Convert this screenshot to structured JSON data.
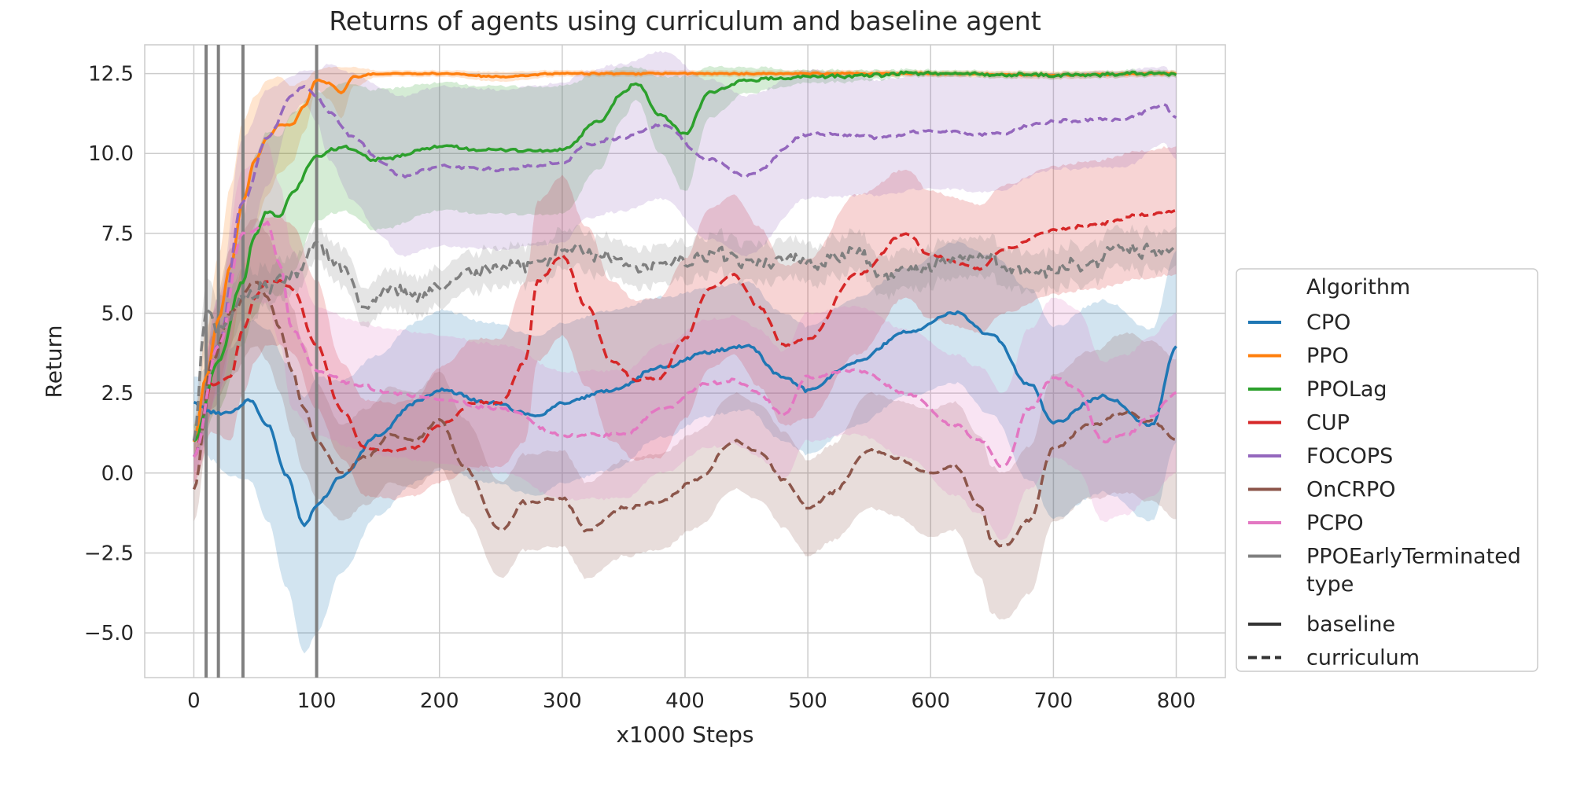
{
  "chart_data": {
    "type": "line",
    "title": "Returns of agents using curriculum and baseline agent",
    "xlabel": "x1000 Steps",
    "ylabel": "Return",
    "xlim": [
      -40,
      840
    ],
    "ylim": [
      -6.4,
      13.4
    ],
    "xticks": [
      0,
      100,
      200,
      300,
      400,
      500,
      600,
      700,
      800
    ],
    "xtick_labels": [
      "0",
      "100",
      "200",
      "300",
      "400",
      "500",
      "600",
      "700",
      "800"
    ],
    "yticks": [
      -5.0,
      -2.5,
      0.0,
      2.5,
      5.0,
      7.5,
      10.0,
      12.5
    ],
    "ytick_labels": [
      "−5.0",
      "−2.5",
      "0.0",
      "2.5",
      "5.0",
      "7.5",
      "10.0",
      "12.5"
    ],
    "grid": true,
    "vertical_lines": [
      10,
      20,
      40,
      100
    ],
    "legend": {
      "placement": "right-outside",
      "hue_title": "Algorithm",
      "style_title": "type",
      "style_entries": [
        {
          "label": "baseline",
          "dash": false
        },
        {
          "label": "curriculum",
          "dash": true
        }
      ]
    },
    "series": [
      {
        "name": "CPO",
        "color": "#1f77b4",
        "type": "baseline",
        "x": [
          0,
          15,
          30,
          45,
          60,
          75,
          90,
          100,
          120,
          150,
          180,
          200,
          240,
          280,
          300,
          340,
          380,
          420,
          450,
          480,
          500,
          540,
          580,
          620,
          650,
          680,
          700,
          740,
          780,
          800
        ],
        "y": [
          2.2,
          1.9,
          1.9,
          2.3,
          1.5,
          0.0,
          -1.6,
          -1.0,
          -0.1,
          1.2,
          2.2,
          2.6,
          2.2,
          1.8,
          2.2,
          2.6,
          3.3,
          3.8,
          4.0,
          3.0,
          2.6,
          3.5,
          4.4,
          5.0,
          4.3,
          2.8,
          1.6,
          2.4,
          1.5,
          3.9
        ],
        "band_width": [
          0.8,
          1.5,
          2.0,
          2.5,
          3.0,
          3.5,
          4.0,
          4.0,
          3.0,
          2.5,
          2.5,
          2.5,
          2.5,
          2.5,
          2.5,
          2.5,
          2.2,
          2.0,
          2.0,
          2.0,
          2.0,
          2.0,
          2.0,
          2.2,
          2.5,
          3.0,
          3.0,
          3.0,
          3.0,
          3.0
        ]
      },
      {
        "name": "PPO",
        "color": "#ff7f0e",
        "type": "baseline",
        "x": [
          0,
          10,
          20,
          30,
          40,
          50,
          60,
          70,
          80,
          90,
          100,
          110,
          120,
          130,
          150,
          200,
          250,
          300,
          400,
          500,
          600,
          700,
          800
        ],
        "y": [
          1.0,
          3.0,
          4.8,
          6.5,
          8.5,
          9.8,
          10.5,
          10.9,
          10.9,
          11.5,
          12.3,
          12.2,
          11.9,
          12.4,
          12.5,
          12.5,
          12.4,
          12.5,
          12.5,
          12.5,
          12.5,
          12.45,
          12.5
        ],
        "band_width": [
          0.5,
          1.5,
          2.0,
          2.5,
          2.5,
          2.0,
          1.8,
          1.5,
          1.2,
          0.8,
          0.3,
          0.5,
          0.8,
          0.3,
          0.1,
          0.1,
          0.15,
          0.1,
          0.1,
          0.1,
          0.1,
          0.12,
          0.1
        ]
      },
      {
        "name": "PPOLag",
        "color": "#2ca02c",
        "type": "baseline",
        "x": [
          0,
          20,
          40,
          50,
          60,
          70,
          80,
          100,
          120,
          150,
          200,
          250,
          300,
          330,
          350,
          360,
          380,
          400,
          420,
          450,
          500,
          600,
          700,
          800
        ],
        "y": [
          1.0,
          3.5,
          6.0,
          7.5,
          8.2,
          8.0,
          8.8,
          9.9,
          10.2,
          9.8,
          10.2,
          10.1,
          10.1,
          11.0,
          11.9,
          12.2,
          11.2,
          10.6,
          11.9,
          12.3,
          12.4,
          12.5,
          12.45,
          12.5
        ],
        "band_width": [
          0.5,
          1.5,
          2.0,
          2.5,
          2.5,
          2.5,
          2.5,
          2.0,
          2.0,
          2.2,
          2.0,
          2.0,
          2.0,
          1.5,
          0.8,
          0.5,
          1.2,
          1.8,
          0.8,
          0.4,
          0.2,
          0.1,
          0.1,
          0.1
        ]
      },
      {
        "name": "CUP",
        "color": "#d62728",
        "type": "curriculum",
        "x": [
          0,
          15,
          30,
          40,
          50,
          60,
          70,
          80,
          100,
          120,
          140,
          160,
          180,
          200,
          230,
          250,
          270,
          280,
          300,
          320,
          340,
          360,
          380,
          400,
          420,
          440,
          460,
          480,
          500,
          540,
          580,
          600,
          640,
          660,
          700,
          740,
          770,
          800
        ],
        "y": [
          0.5,
          2.8,
          3.0,
          4.5,
          5.5,
          6.0,
          6.0,
          5.8,
          4.0,
          2.0,
          0.8,
          0.7,
          0.8,
          1.5,
          2.2,
          2.2,
          3.5,
          6.0,
          6.8,
          5.2,
          3.5,
          2.9,
          3.0,
          4.2,
          5.8,
          6.2,
          5.2,
          4.0,
          4.2,
          6.2,
          7.5,
          6.8,
          6.4,
          7.0,
          7.6,
          7.8,
          8.1,
          8.2
        ],
        "band_width": [
          0.8,
          1.5,
          2.0,
          2.0,
          2.0,
          2.0,
          2.0,
          2.0,
          2.0,
          1.5,
          1.5,
          1.5,
          1.5,
          1.8,
          2.0,
          2.0,
          2.5,
          2.5,
          2.5,
          2.5,
          2.5,
          2.5,
          2.5,
          2.5,
          2.5,
          2.5,
          2.5,
          2.5,
          2.5,
          2.5,
          2.0,
          2.0,
          2.0,
          2.0,
          2.0,
          2.0,
          2.0,
          2.0
        ]
      },
      {
        "name": "FOCOPS",
        "color": "#9467bd",
        "type": "curriculum",
        "x": [
          0,
          20,
          40,
          60,
          80,
          90,
          100,
          110,
          130,
          150,
          170,
          200,
          250,
          300,
          320,
          350,
          380,
          420,
          450,
          500,
          560,
          600,
          650,
          700,
          760,
          790,
          800
        ],
        "y": [
          0.5,
          4.0,
          8.5,
          10.5,
          11.8,
          12.1,
          11.8,
          11.3,
          10.5,
          9.8,
          9.3,
          9.6,
          9.5,
          9.7,
          10.3,
          10.5,
          10.9,
          9.8,
          9.3,
          10.6,
          10.5,
          10.7,
          10.6,
          11.0,
          11.1,
          11.5,
          11.1
        ],
        "band_width": [
          0.5,
          1.5,
          2.0,
          1.5,
          0.6,
          0.5,
          0.8,
          1.5,
          2.0,
          2.3,
          2.5,
          2.5,
          2.5,
          2.5,
          2.3,
          2.3,
          2.3,
          2.5,
          2.5,
          2.0,
          1.8,
          1.8,
          1.8,
          1.5,
          1.5,
          1.2,
          1.3
        ]
      },
      {
        "name": "OnCRPO",
        "color": "#8c564b",
        "type": "curriculum",
        "x": [
          0,
          15,
          30,
          50,
          60,
          70,
          80,
          90,
          100,
          120,
          140,
          160,
          180,
          200,
          220,
          250,
          270,
          300,
          320,
          350,
          380,
          410,
          440,
          460,
          480,
          500,
          520,
          550,
          570,
          600,
          620,
          640,
          650,
          660,
          680,
          700,
          730,
          760,
          780,
          800
        ],
        "y": [
          -0.5,
          3.5,
          5.0,
          6.0,
          5.5,
          4.5,
          3.2,
          2.0,
          1.0,
          0.0,
          0.5,
          1.2,
          1.0,
          1.7,
          0.2,
          -1.8,
          -0.9,
          -0.8,
          -1.8,
          -1.1,
          -0.9,
          -0.2,
          1.0,
          0.7,
          -0.2,
          -1.1,
          -0.6,
          0.7,
          0.5,
          0.0,
          0.2,
          -1.0,
          -2.1,
          -2.3,
          -1.5,
          0.8,
          1.5,
          1.9,
          1.6,
          1.1
        ],
        "band_width": [
          1.0,
          1.5,
          2.0,
          2.0,
          2.0,
          2.0,
          2.0,
          2.0,
          1.8,
          1.5,
          1.5,
          1.5,
          1.5,
          1.5,
          1.5,
          1.5,
          1.5,
          1.5,
          1.5,
          1.5,
          1.5,
          1.5,
          1.5,
          1.5,
          1.5,
          1.5,
          1.5,
          1.8,
          1.8,
          2.0,
          2.0,
          2.2,
          2.3,
          2.3,
          2.3,
          2.3,
          2.3,
          2.5,
          2.5,
          2.5
        ]
      },
      {
        "name": "PCPO",
        "color": "#e377c2",
        "type": "curriculum",
        "x": [
          0,
          20,
          40,
          60,
          70,
          80,
          100,
          130,
          160,
          200,
          250,
          300,
          350,
          380,
          420,
          440,
          460,
          480,
          500,
          540,
          580,
          620,
          640,
          660,
          680,
          700,
          720,
          740,
          760,
          780,
          800
        ],
        "y": [
          0.5,
          4.0,
          7.5,
          7.8,
          6.5,
          4.5,
          3.2,
          2.8,
          2.5,
          2.3,
          2.0,
          1.2,
          1.2,
          2.0,
          2.8,
          2.9,
          2.5,
          1.8,
          3.0,
          3.2,
          2.5,
          1.5,
          1.0,
          0.2,
          2.0,
          3.0,
          2.6,
          1.0,
          1.2,
          1.8,
          2.5
        ],
        "band_width": [
          0.8,
          1.5,
          2.0,
          2.5,
          2.5,
          2.5,
          2.0,
          2.0,
          2.0,
          2.0,
          2.0,
          2.0,
          2.0,
          2.0,
          2.0,
          2.0,
          2.0,
          2.0,
          2.0,
          2.0,
          2.0,
          2.2,
          2.3,
          2.3,
          2.5,
          2.5,
          2.5,
          2.5,
          2.5,
          2.5,
          2.5
        ]
      },
      {
        "name": "PPOEarlyTerminated",
        "color": "#7f7f7f",
        "type": "curriculum",
        "x": [
          0,
          10,
          20,
          40,
          60,
          80,
          100,
          120,
          140,
          160,
          180,
          200,
          230,
          260,
          290,
          300,
          330,
          360,
          400,
          430,
          460,
          480,
          500,
          540,
          560,
          600,
          640,
          680,
          720,
          760,
          800
        ],
        "y": [
          1.0,
          5.0,
          4.5,
          5.5,
          5.8,
          6.2,
          7.0,
          6.5,
          5.2,
          5.8,
          5.5,
          5.9,
          6.3,
          6.5,
          6.6,
          7.2,
          6.8,
          6.4,
          6.6,
          6.8,
          6.5,
          6.8,
          6.6,
          6.9,
          6.2,
          6.5,
          6.8,
          6.3,
          6.5,
          7.0,
          6.9
        ],
        "band_width": [
          0.5,
          1.0,
          1.0,
          0.8,
          0.6,
          0.6,
          0.5,
          0.6,
          0.6,
          0.6,
          0.6,
          0.6,
          0.6,
          0.6,
          0.6,
          0.6,
          0.6,
          0.6,
          0.6,
          0.6,
          0.6,
          0.6,
          0.6,
          0.6,
          0.6,
          0.6,
          0.6,
          0.6,
          0.6,
          0.6,
          0.6
        ]
      }
    ]
  }
}
